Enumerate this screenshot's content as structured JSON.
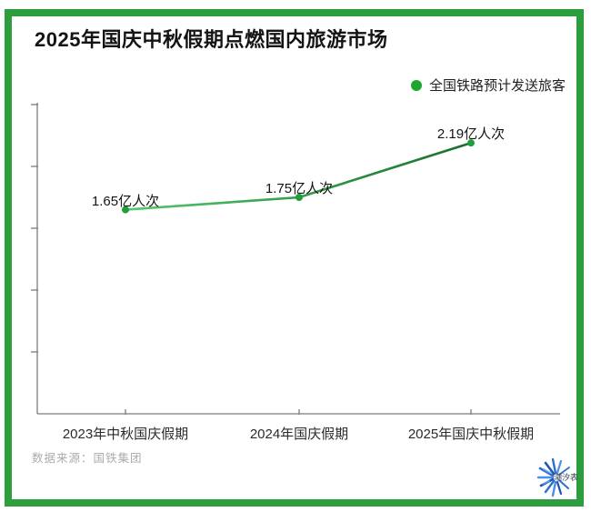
{
  "frame": {
    "border_color": "#2d9e3e"
  },
  "header": {
    "title": "2025年国庆中秋假期点燃国内旅游市场"
  },
  "legend": {
    "label": "全国铁路预计发送旅客",
    "dot_color": "#1ea62e"
  },
  "chart_data": {
    "type": "line",
    "title": "2025年国庆中秋假期点燃国内旅游市场",
    "categories": [
      "2023年中秋国庆假期",
      "2024年国庆假期",
      "2025年国庆中秋假期"
    ],
    "series": [
      {
        "name": "全国铁路预计发送旅客",
        "values": [
          1.65,
          1.75,
          2.19
        ]
      }
    ],
    "point_labels": [
      "1.65亿人次",
      "1.75亿人次",
      "2.19亿人次"
    ],
    "unit": "亿人次",
    "xlabel": "",
    "ylabel": "",
    "ylim": [
      0,
      2.5
    ],
    "y_tick_step": 0.5,
    "y_tick_labels_visible": false,
    "grid": false,
    "legend_position": "top-right",
    "line_gradient": [
      "#55c96e",
      "#176e2c"
    ],
    "point_color": "#1f9e3d",
    "axis_color": "#7d7d7d"
  },
  "footer": {
    "source": "数据来源：国铁集团",
    "logo_text": "潮汐表"
  }
}
